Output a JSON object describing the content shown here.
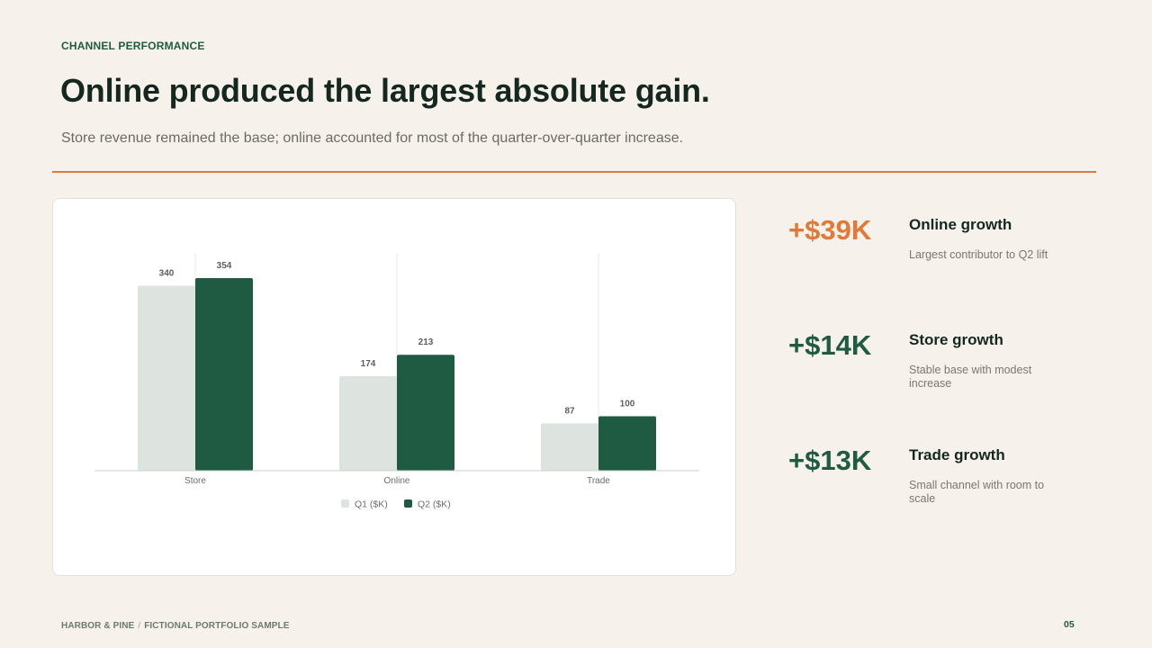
{
  "header": {
    "eyebrow": "CHANNEL PERFORMANCE",
    "title": "Online produced the largest absolute gain.",
    "subtitle": "Store revenue remained the base; online accounted for most of the quarter-over-quarter increase."
  },
  "chart_data": {
    "type": "bar",
    "categories": [
      "Store",
      "Online",
      "Trade"
    ],
    "series": [
      {
        "name": "Q1 ($K)",
        "values": [
          340,
          174,
          87
        ],
        "color": "#dde4df"
      },
      {
        "name": "Q2 ($K)",
        "values": [
          354,
          213,
          100
        ],
        "color": "#1f5a42"
      }
    ],
    "ylim": [
      0,
      400
    ],
    "legend": "bottom-center",
    "data_labels": true,
    "grid": "vertical"
  },
  "stats": [
    {
      "value": "+$39K",
      "label": "Online growth",
      "desc": "Largest contributor to Q2 lift",
      "color": "#e07a3a"
    },
    {
      "value": "+$14K",
      "label": "Store growth",
      "desc": "Stable base with modest increase",
      "color": "#1f5a42"
    },
    {
      "value": "+$13K",
      "label": "Trade growth",
      "desc": "Small channel with room to scale",
      "color": "#1f5a42"
    }
  ],
  "footer": {
    "brand": "HARBOR & PINE",
    "separator": "/",
    "note": "FICTIONAL PORTFOLIO SAMPLE",
    "page": "05"
  },
  "colors": {
    "accent": "#e07a3a",
    "primary": "#1f5a42",
    "background": "#f6f2eb"
  }
}
